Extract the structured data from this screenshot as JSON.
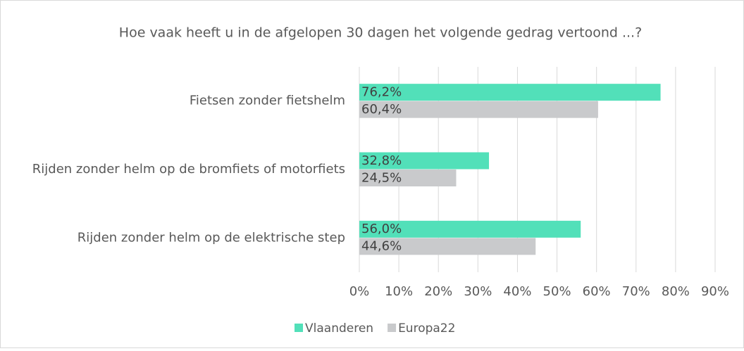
{
  "chart_data": {
    "type": "hbar",
    "title": "Hoe vaak heeft u in de afgelopen 30 dagen het volgende gedrag vertoond ...?",
    "categories": [
      "Fietsen zonder fietshelm",
      "Rijden zonder helm op de bromfiets of motorfiets",
      "Rijden zonder helm op de elektrische step"
    ],
    "series": [
      {
        "name": "Vlaanderen",
        "color": "#52e0b9",
        "values": [
          76.2,
          32.8,
          56.0
        ],
        "value_labels": [
          "76,2%",
          "32,8%",
          "56,0%"
        ]
      },
      {
        "name": "Europa22",
        "color": "#c9cacc",
        "values": [
          60.4,
          24.5,
          44.6
        ],
        "value_labels": [
          "60,4%",
          "24,5%",
          "44,6%"
        ]
      }
    ],
    "xlim": [
      0,
      90
    ],
    "xticks": [
      {
        "value": 0,
        "label": "0%"
      },
      {
        "value": 10,
        "label": "10%"
      },
      {
        "value": 20,
        "label": "20%"
      },
      {
        "value": 30,
        "label": "30%"
      },
      {
        "value": 40,
        "label": "40%"
      },
      {
        "value": 50,
        "label": "50%"
      },
      {
        "value": 60,
        "label": "60%"
      },
      {
        "value": 70,
        "label": "70%"
      },
      {
        "value": 80,
        "label": "80%"
      },
      {
        "value": 90,
        "label": "90%"
      }
    ],
    "grid": true,
    "legend": "bottom"
  }
}
